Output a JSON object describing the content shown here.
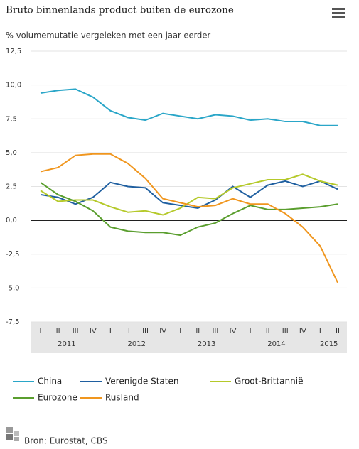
{
  "chart_data": {
    "type": "line",
    "title": "Bruto binnenlands product buiten de eurozone",
    "subtitle": "%-volumemutatie vergeleken met een jaar eerder",
    "categories": [
      "I",
      "II",
      "III",
      "IV",
      "I",
      "II",
      "III",
      "IV",
      "I",
      "II",
      "III",
      "IV",
      "I",
      "II",
      "III",
      "IV",
      "I",
      "II"
    ],
    "years": [
      "2011",
      "2012",
      "2013",
      "2014",
      "2015"
    ],
    "series": [
      {
        "name": "China",
        "color": "#2aa6c8",
        "values": [
          9.4,
          9.6,
          9.7,
          9.1,
          8.1,
          7.6,
          7.4,
          7.9,
          7.7,
          7.5,
          7.8,
          7.7,
          7.4,
          7.5,
          7.3,
          7.3,
          7.0,
          7.0
        ]
      },
      {
        "name": "Verenigde Staten",
        "color": "#1f5fa0",
        "values": [
          1.9,
          1.7,
          1.2,
          1.7,
          2.8,
          2.5,
          2.4,
          1.3,
          1.1,
          0.9,
          1.5,
          2.5,
          1.7,
          2.6,
          2.9,
          2.5,
          2.9,
          2.3
        ]
      },
      {
        "name": "Groot-Brittannië",
        "color": "#b5c92a",
        "values": [
          2.2,
          1.4,
          1.5,
          1.5,
          1.0,
          0.6,
          0.7,
          0.4,
          0.9,
          1.7,
          1.6,
          2.4,
          2.7,
          3.0,
          3.0,
          3.4,
          2.9,
          2.6
        ]
      },
      {
        "name": "Eurozone",
        "color": "#5a9e2e",
        "values": [
          2.8,
          1.9,
          1.4,
          0.7,
          -0.5,
          -0.8,
          -0.9,
          -0.9,
          -1.1,
          -0.5,
          -0.2,
          0.5,
          1.1,
          0.8,
          0.8,
          0.9,
          1.0,
          1.2
        ]
      },
      {
        "name": "Rusland",
        "color": "#f0961e",
        "values": [
          3.6,
          3.9,
          4.8,
          4.9,
          4.9,
          4.2,
          3.1,
          1.6,
          1.3,
          1.0,
          1.1,
          1.6,
          1.2,
          1.2,
          0.5,
          -0.5,
          -1.9,
          -4.6
        ]
      }
    ],
    "ylim": [
      -7.5,
      12.5
    ],
    "yticks": [
      {
        "value": -7.5,
        "label": "-7,5"
      },
      {
        "value": -5,
        "label": "-5,0"
      },
      {
        "value": -2.5,
        "label": "-2,5"
      },
      {
        "value": 0,
        "label": "0,0"
      },
      {
        "value": 2.5,
        "label": "2,5"
      },
      {
        "value": 5,
        "label": "5,0"
      },
      {
        "value": 7.5,
        "label": "7,5"
      },
      {
        "value": 10,
        "label": "10,0"
      },
      {
        "value": 12.5,
        "label": "12,5"
      }
    ],
    "grid": true,
    "source": "Bron: Eurostat, CBS"
  }
}
